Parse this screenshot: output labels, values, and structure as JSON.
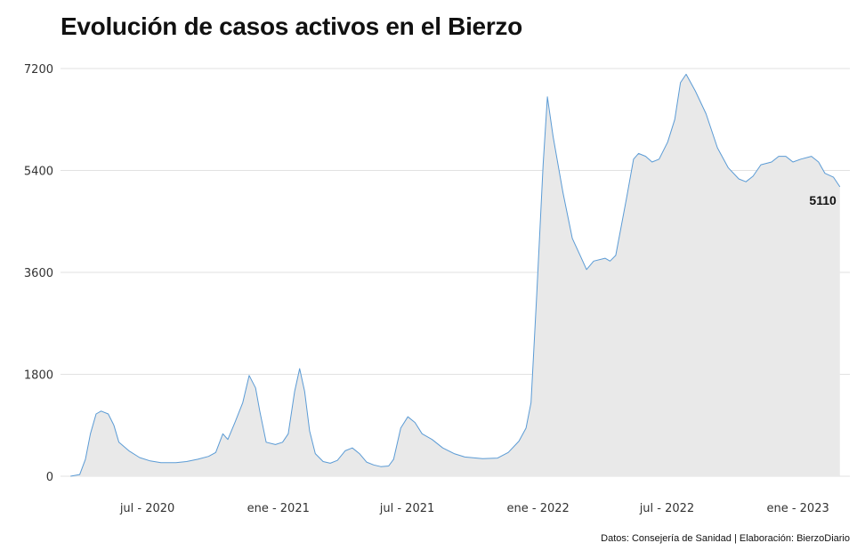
{
  "title": "Evolución de casos activos en el Bierzo",
  "caption": "Datos: Consejería de Sanidad | Elaboración: BierzoDiario",
  "colors": {
    "line": "#5b9bd5",
    "area": "#e9e9e9",
    "grid": "#e2e2e2"
  },
  "chart_data": {
    "type": "area",
    "title": "Evolución de casos activos en el Bierzo",
    "xlabel": "",
    "ylabel": "",
    "ylim": [
      0,
      7200
    ],
    "yticks": [
      0,
      1800,
      3600,
      5400,
      7200
    ],
    "xlim": [
      "2020-03-01",
      "2023-03-15"
    ],
    "xticks": [
      {
        "date": "2020-07-01",
        "label": "jul - 2020"
      },
      {
        "date": "2021-01-01",
        "label": "ene - 2021"
      },
      {
        "date": "2021-07-01",
        "label": "jul - 2021"
      },
      {
        "date": "2022-01-01",
        "label": "ene - 2022"
      },
      {
        "date": "2022-07-01",
        "label": "jul - 2022"
      },
      {
        "date": "2023-01-01",
        "label": "ene - 2023"
      }
    ],
    "grid": true,
    "last_value_label": "5110",
    "series": [
      {
        "points": [
          [
            "2020-03-15",
            0
          ],
          [
            "2020-03-28",
            30
          ],
          [
            "2020-04-05",
            300
          ],
          [
            "2020-04-12",
            750
          ],
          [
            "2020-04-20",
            1100
          ],
          [
            "2020-04-27",
            1150
          ],
          [
            "2020-05-07",
            1100
          ],
          [
            "2020-05-15",
            900
          ],
          [
            "2020-05-22",
            600
          ],
          [
            "2020-06-05",
            450
          ],
          [
            "2020-06-20",
            330
          ],
          [
            "2020-07-05",
            270
          ],
          [
            "2020-07-20",
            240
          ],
          [
            "2020-08-10",
            240
          ],
          [
            "2020-08-25",
            260
          ],
          [
            "2020-09-10",
            300
          ],
          [
            "2020-09-25",
            350
          ],
          [
            "2020-10-05",
            420
          ],
          [
            "2020-10-15",
            750
          ],
          [
            "2020-10-22",
            650
          ],
          [
            "2020-11-01",
            950
          ],
          [
            "2020-11-12",
            1300
          ],
          [
            "2020-11-21",
            1780
          ],
          [
            "2020-11-30",
            1560
          ],
          [
            "2020-12-06",
            1150
          ],
          [
            "2020-12-15",
            600
          ],
          [
            "2020-12-28",
            560
          ],
          [
            "2021-01-07",
            600
          ],
          [
            "2021-01-15",
            750
          ],
          [
            "2021-01-24",
            1500
          ],
          [
            "2021-01-31",
            1900
          ],
          [
            "2021-02-07",
            1500
          ],
          [
            "2021-02-14",
            800
          ],
          [
            "2021-02-22",
            400
          ],
          [
            "2021-03-05",
            260
          ],
          [
            "2021-03-15",
            230
          ],
          [
            "2021-03-25",
            280
          ],
          [
            "2021-04-05",
            450
          ],
          [
            "2021-04-15",
            500
          ],
          [
            "2021-04-25",
            400
          ],
          [
            "2021-05-05",
            250
          ],
          [
            "2021-05-15",
            200
          ],
          [
            "2021-05-25",
            170
          ],
          [
            "2021-06-05",
            180
          ],
          [
            "2021-06-12",
            300
          ],
          [
            "2021-06-22",
            850
          ],
          [
            "2021-07-02",
            1050
          ],
          [
            "2021-07-12",
            950
          ],
          [
            "2021-07-22",
            750
          ],
          [
            "2021-08-05",
            650
          ],
          [
            "2021-08-20",
            500
          ],
          [
            "2021-09-05",
            400
          ],
          [
            "2021-09-20",
            340
          ],
          [
            "2021-10-15",
            310
          ],
          [
            "2021-11-05",
            320
          ],
          [
            "2021-11-20",
            420
          ],
          [
            "2021-12-05",
            620
          ],
          [
            "2021-12-15",
            850
          ],
          [
            "2021-12-22",
            1300
          ],
          [
            "2021-12-30",
            3200
          ],
          [
            "2022-01-08",
            5500
          ],
          [
            "2022-01-14",
            6700
          ],
          [
            "2022-01-22",
            6000
          ],
          [
            "2022-02-05",
            5000
          ],
          [
            "2022-02-18",
            4200
          ],
          [
            "2022-03-01",
            3900
          ],
          [
            "2022-03-10",
            3650
          ],
          [
            "2022-03-20",
            3800
          ],
          [
            "2022-04-05",
            3850
          ],
          [
            "2022-04-12",
            3800
          ],
          [
            "2022-04-20",
            3900
          ],
          [
            "2022-05-05",
            4900
          ],
          [
            "2022-05-15",
            5600
          ],
          [
            "2022-05-22",
            5700
          ],
          [
            "2022-06-01",
            5650
          ],
          [
            "2022-06-10",
            5550
          ],
          [
            "2022-06-20",
            5600
          ],
          [
            "2022-07-02",
            5900
          ],
          [
            "2022-07-12",
            6300
          ],
          [
            "2022-07-20",
            6950
          ],
          [
            "2022-07-28",
            7100
          ],
          [
            "2022-08-10",
            6800
          ],
          [
            "2022-08-25",
            6400
          ],
          [
            "2022-09-10",
            5800
          ],
          [
            "2022-09-25",
            5450
          ],
          [
            "2022-10-10",
            5250
          ],
          [
            "2022-10-20",
            5200
          ],
          [
            "2022-10-30",
            5300
          ],
          [
            "2022-11-10",
            5500
          ],
          [
            "2022-11-25",
            5550
          ],
          [
            "2022-12-05",
            5650
          ],
          [
            "2022-12-15",
            5650
          ],
          [
            "2022-12-25",
            5550
          ],
          [
            "2023-01-05",
            5600
          ],
          [
            "2023-01-20",
            5650
          ],
          [
            "2023-01-30",
            5550
          ],
          [
            "2023-02-08",
            5350
          ],
          [
            "2023-02-20",
            5280
          ],
          [
            "2023-03-01",
            5110
          ]
        ]
      }
    ]
  }
}
